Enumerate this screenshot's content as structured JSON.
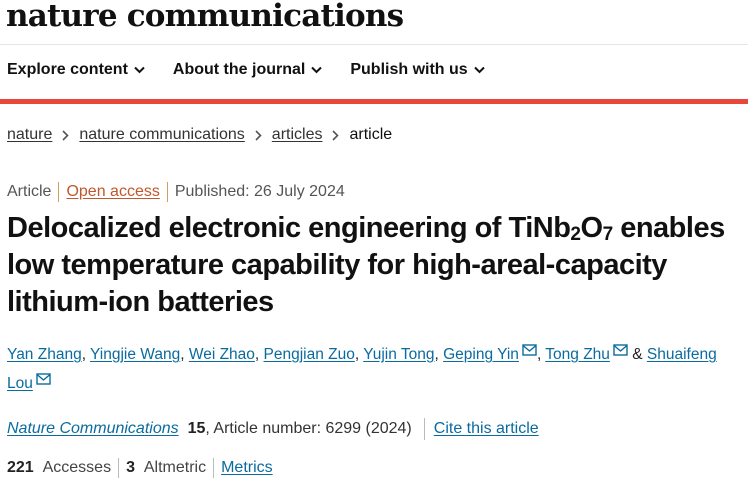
{
  "header": {
    "logo": "nature communications"
  },
  "nav": [
    {
      "label": "Explore content"
    },
    {
      "label": "About the journal"
    },
    {
      "label": "Publish with us"
    }
  ],
  "breadcrumb": [
    {
      "label": "nature"
    },
    {
      "label": "nature communications"
    },
    {
      "label": "articles"
    },
    {
      "label": "article"
    }
  ],
  "meta": {
    "type": "Article",
    "access": "Open access",
    "published": "Published: 26 July 2024"
  },
  "title": {
    "part1": "Delocalized electronic engineering of TiNb",
    "sub1": "2",
    "part2": "O",
    "sub2": "7",
    "part3": " enables low temperature capability for high-areal-capacity lithium-ion batteries"
  },
  "authors": [
    {
      "name": "Yan Zhang",
      "mail": false
    },
    {
      "name": "Yingjie Wang",
      "mail": false
    },
    {
      "name": "Wei Zhao",
      "mail": false
    },
    {
      "name": "Pengjian Zuo",
      "mail": false
    },
    {
      "name": "Yujin Tong",
      "mail": false
    },
    {
      "name": "Geping Yin",
      "mail": true
    },
    {
      "name": "Tong Zhu",
      "mail": true
    },
    {
      "name": "Shuaifeng Lou",
      "mail": true
    }
  ],
  "citation": {
    "journal": "Nature Communications",
    "volume": "15",
    "article_number": ", Article number: 6299 (2024)",
    "cite_link": "Cite this article"
  },
  "metrics": {
    "accesses_count": "221",
    "accesses_label": "Accesses",
    "altmetric_count": "3",
    "altmetric_label": "Altmetric",
    "metrics_link": "Metrics"
  },
  "colors": {
    "accent_bar": "#e8483c",
    "link": "#0a6b9f",
    "open_access": "#c0582a"
  }
}
